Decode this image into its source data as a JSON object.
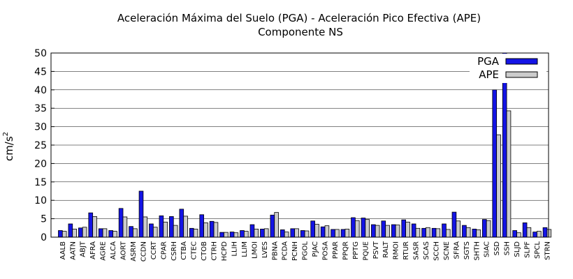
{
  "chart_data": {
    "type": "bar",
    "title": "Aceleración Máxima del Suelo (PGA) -  Aceleración Pico Efectiva (APE)",
    "subtitle": "Componente NS",
    "ylabel": "cm/s",
    "ylabel_sup": "2",
    "xlabel": "",
    "ylim": [
      0,
      50
    ],
    "yticks": [
      0,
      5,
      10,
      15,
      20,
      25,
      30,
      35,
      40,
      45,
      50
    ],
    "grid": "horizontal",
    "legend_position": "top-right",
    "categories": [
      "AALB",
      "AATN",
      "ABJT",
      "AFRA",
      "AGRE",
      "ALCA",
      "AORT",
      "ASRM",
      "CCDN",
      "CCRT",
      "CPAR",
      "CSRH",
      "CTBA",
      "CTEC",
      "CTOB",
      "CTRH",
      "HCPD",
      "LLIH",
      "LLIM",
      "LMOI",
      "LVES",
      "PBNA",
      "PCDA",
      "PCNH",
      "PGOL",
      "PJAC",
      "POSA",
      "PPAR",
      "PPQR",
      "PPTG",
      "PQUE",
      "PSVT",
      "RALT",
      "RMOI",
      "RTUR",
      "SASR",
      "SCAS",
      "SCCH",
      "SCNE",
      "SFRA",
      "SGTS",
      "SHTH",
      "SIAC",
      "SSD",
      "SSH",
      "SLJD",
      "SLPF",
      "SPCL",
      "STRN"
    ],
    "series": [
      {
        "name": "PGA",
        "color": "#1414e6",
        "values": [
          1.8,
          3.6,
          2.5,
          6.6,
          2.3,
          1.8,
          7.8,
          2.9,
          12.5,
          3.6,
          5.8,
          5.6,
          7.6,
          2.4,
          6.1,
          4.3,
          1.3,
          1.4,
          1.8,
          3.4,
          2.2,
          6.0,
          2.0,
          2.3,
          1.8,
          4.4,
          2.8,
          2.1,
          2.1,
          5.3,
          5.2,
          3.4,
          4.4,
          3.4,
          4.7,
          3.6,
          2.4,
          2.4,
          3.6,
          6.8,
          3.2,
          2.2,
          4.8,
          40.0,
          50.0,
          1.8,
          3.9,
          1.4,
          2.6
        ]
      },
      {
        "name": "APE",
        "color": "#cccccc",
        "values": [
          1.6,
          2.2,
          2.7,
          5.6,
          2.3,
          1.6,
          5.5,
          2.3,
          5.5,
          2.7,
          4.1,
          3.2,
          5.7,
          2.2,
          3.9,
          4.0,
          1.3,
          1.2,
          1.6,
          2.2,
          2.3,
          6.7,
          1.4,
          2.3,
          1.7,
          3.5,
          3.1,
          2.1,
          2.2,
          4.5,
          4.8,
          3.2,
          3.2,
          3.3,
          4.1,
          2.4,
          2.6,
          2.3,
          2.1,
          4.4,
          2.6,
          2.0,
          4.5,
          27.8,
          34.3,
          1.2,
          2.6,
          1.6,
          2.1
        ]
      }
    ]
  }
}
